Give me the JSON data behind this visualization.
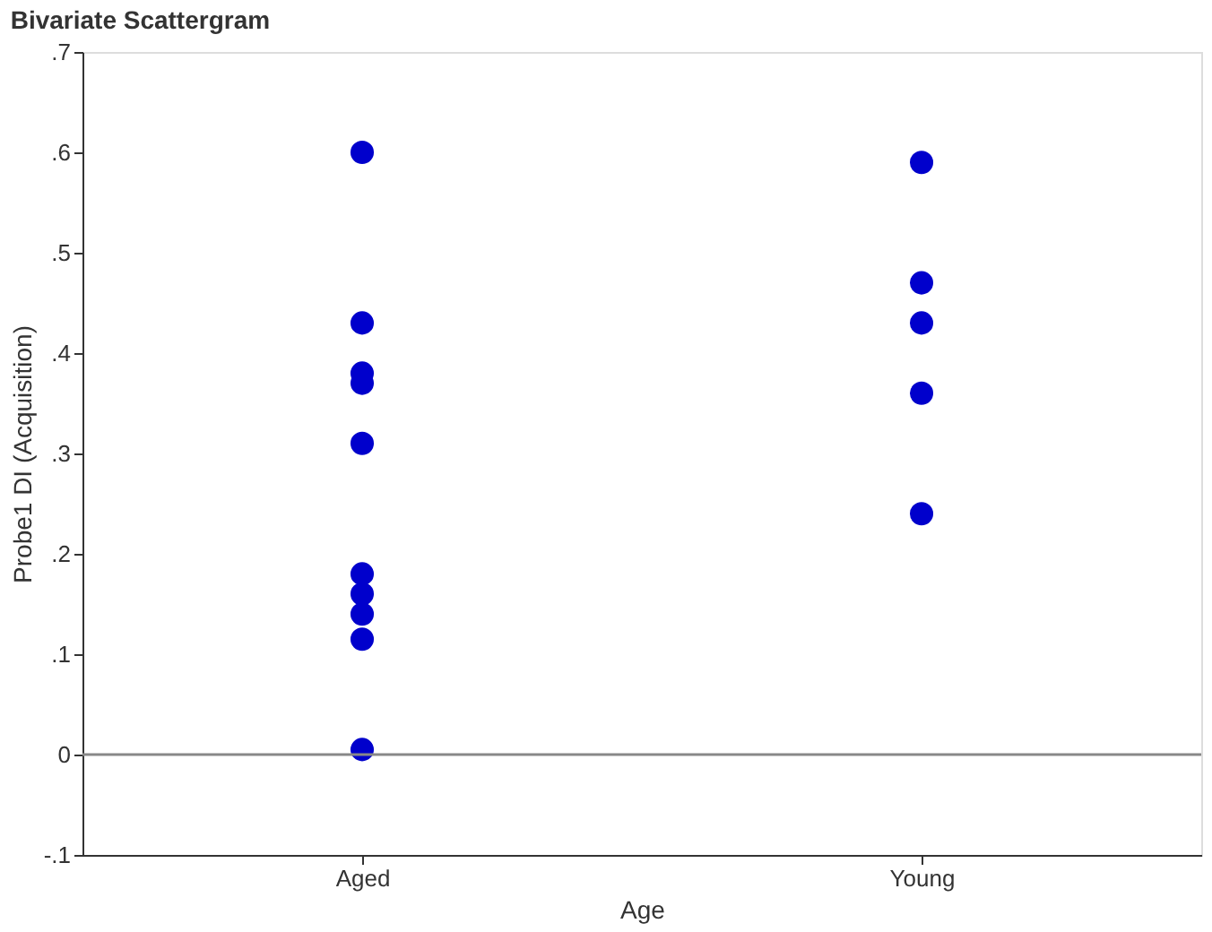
{
  "chart_data": {
    "type": "scatter",
    "title": "Bivariate Scattergram",
    "xlabel": "Age",
    "ylabel": "Probe1  DI (Acquisition)",
    "categories": [
      "Aged",
      "Young"
    ],
    "series": [
      {
        "color": "#0000cc",
        "x": [
          "Aged",
          "Aged",
          "Aged",
          "Aged",
          "Aged",
          "Aged",
          "Aged",
          "Aged",
          "Aged",
          "Aged"
        ],
        "values": [
          0.6,
          0.43,
          0.38,
          0.37,
          0.31,
          0.18,
          0.16,
          0.14,
          0.115,
          0.005
        ]
      },
      {
        "color": "#0000cc",
        "x": [
          "Young",
          "Young",
          "Young",
          "Young",
          "Young"
        ],
        "values": [
          0.59,
          0.47,
          0.43,
          0.36,
          0.24
        ]
      }
    ],
    "ylim": [
      -0.1,
      0.7
    ],
    "yticks": [
      {
        "value": -0.1,
        "label": "-.1"
      },
      0,
      {
        "value": 0.1,
        "label": ".1"
      },
      {
        "value": 0.2,
        "label": ".2"
      },
      {
        "value": 0.3,
        "label": ".3"
      },
      {
        "value": 0.4,
        "label": ".4"
      },
      {
        "value": 0.5,
        "label": ".5"
      },
      {
        "value": 0.6,
        "label": ".6"
      },
      {
        "value": 0.7,
        "label": ".7"
      }
    ],
    "ref_lines": [
      {
        "axis": "y",
        "value": 0,
        "color": "#888888"
      }
    ],
    "grid": false,
    "marker": "circle"
  }
}
